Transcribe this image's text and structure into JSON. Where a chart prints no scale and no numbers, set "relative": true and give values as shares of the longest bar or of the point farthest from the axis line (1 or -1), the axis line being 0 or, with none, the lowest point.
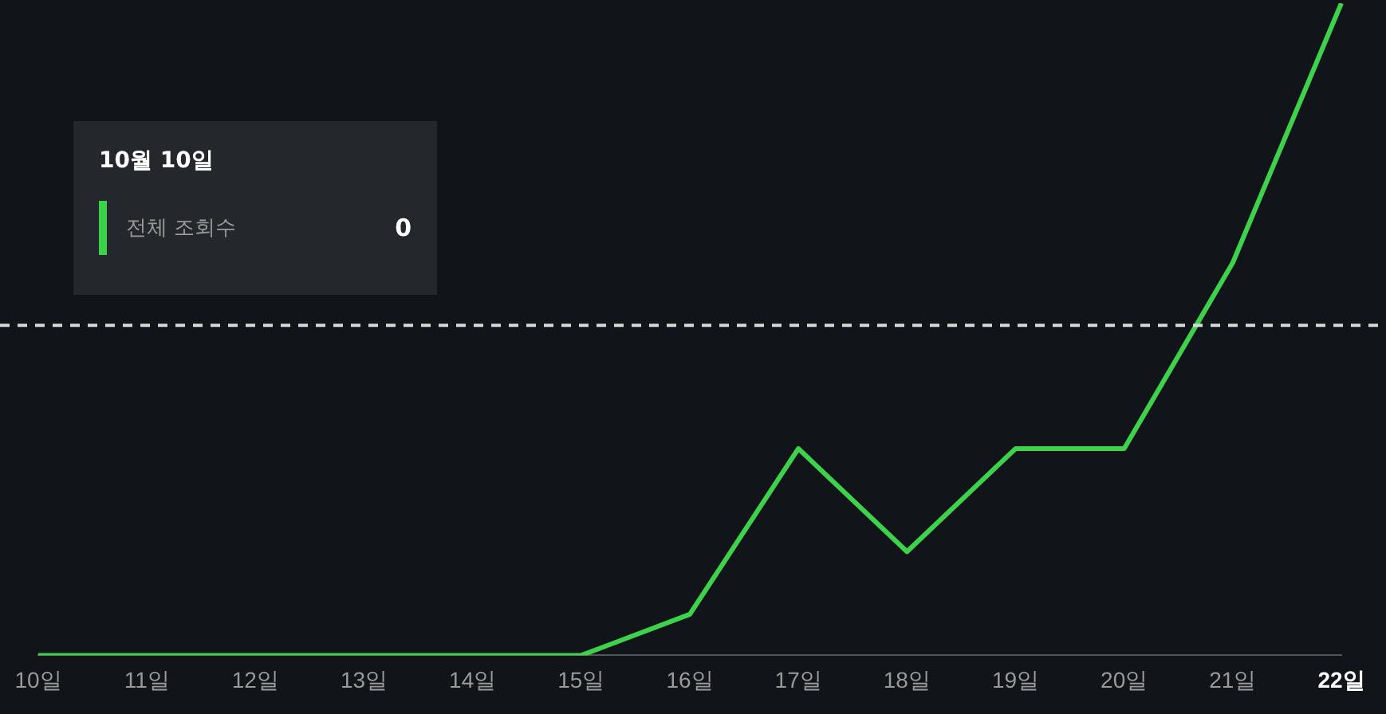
{
  "chart_data": {
    "type": "line",
    "relative": true,
    "categories": [
      "10일",
      "11일",
      "12일",
      "13일",
      "14일",
      "15일",
      "16일",
      "17일",
      "18일",
      "19일",
      "20일",
      "21일",
      "22일"
    ],
    "series": [
      {
        "name": "전체 조회수",
        "color": "#3ed14b",
        "values": [
          0,
          0,
          0,
          0,
          0,
          0,
          0.063,
          0.317,
          0.159,
          0.317,
          0.317,
          0.602,
          1
        ]
      }
    ],
    "ref_lines": [
      {
        "axis": "y",
        "value": 0.506,
        "color": "#d8d8d8",
        "line_style": "dashed"
      }
    ],
    "annotations": [
      "10월 10일",
      "0"
    ],
    "legend": "top left",
    "grid": false,
    "marker": "none",
    "line_style": "solid"
  }
}
